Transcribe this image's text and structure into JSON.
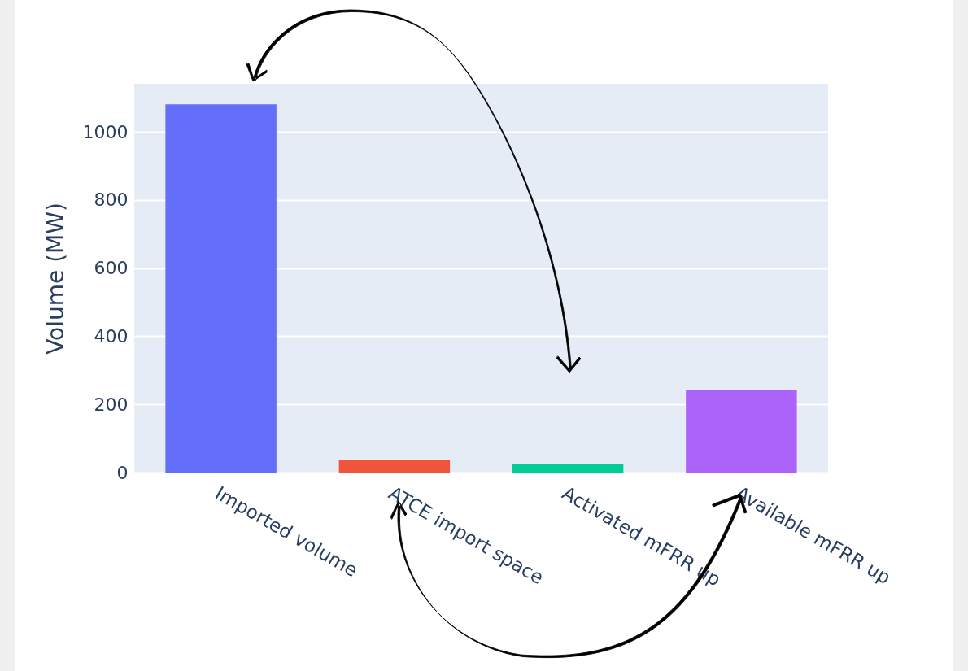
{
  "chart_data": {
    "type": "bar",
    "ylabel": "Volume (MW)",
    "categories": [
      "Imported volume",
      "ATCE import space",
      "Activated mFRR up",
      "Available mFRR up"
    ],
    "values": [
      1081,
      36,
      26,
      243
    ],
    "colors": [
      "#636efa",
      "#ef553b",
      "#00cc96",
      "#ab63fa"
    ],
    "ylim": [
      0,
      1141
    ],
    "yticks": [
      0,
      200,
      400,
      600,
      800,
      1000
    ],
    "grid": "y"
  }
}
